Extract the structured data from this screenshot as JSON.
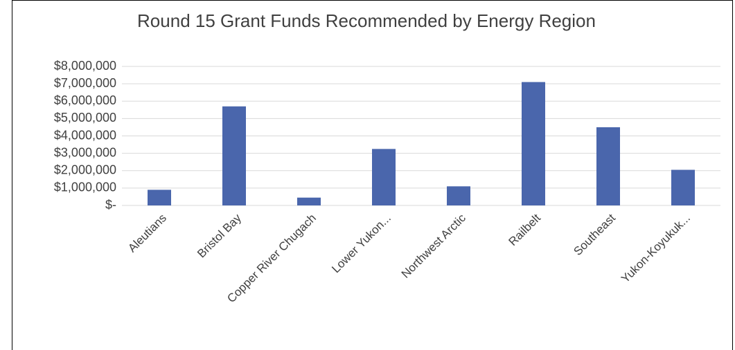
{
  "chart_data": {
    "type": "bar",
    "title": "Round 15 Grant Funds Recommended by Energy Region",
    "categories": [
      "Aleutians",
      "Bristol Bay",
      "Copper River Chugach",
      "Lower Yukon...",
      "Northwest Arctic",
      "Railbelt",
      "Southeast",
      "Yukon-Koyukuk..."
    ],
    "values": [
      900000,
      5700000,
      450000,
      3250000,
      1100000,
      7100000,
      4500000,
      2050000
    ],
    "color": "#4a66ac",
    "ylim": [
      0,
      8000000
    ],
    "yticks": [
      {
        "value": 0,
        "label": "$-"
      },
      {
        "value": 1000000,
        "label": "$1,000,000"
      },
      {
        "value": 2000000,
        "label": "$2,000,000"
      },
      {
        "value": 3000000,
        "label": "$3,000,000"
      },
      {
        "value": 4000000,
        "label": "$4,000,000"
      },
      {
        "value": 5000000,
        "label": "$5,000,000"
      },
      {
        "value": 6000000,
        "label": "$6,000,000"
      },
      {
        "value": 7000000,
        "label": "$7,000,000"
      },
      {
        "value": 8000000,
        "label": "$8,000,000"
      }
    ],
    "grid": true
  }
}
